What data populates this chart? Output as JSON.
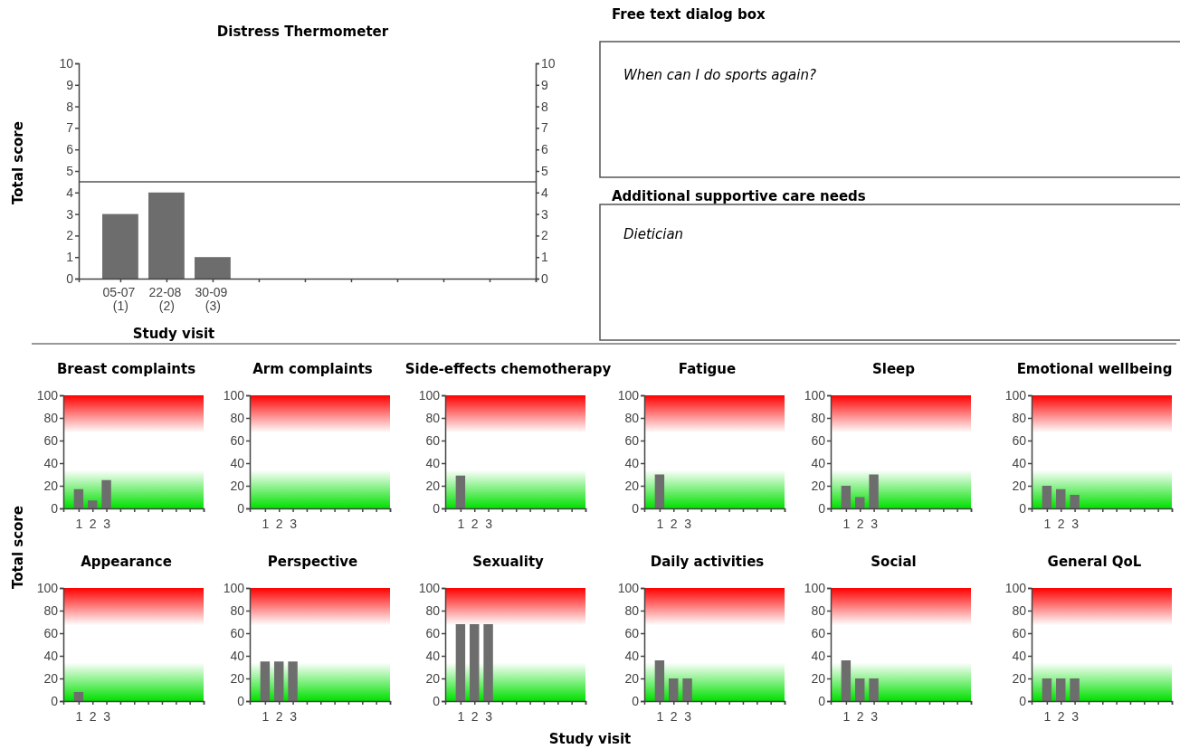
{
  "chart_data": [
    {
      "type": "bar",
      "title": "Distress Thermometer",
      "xlabel": "Study visit",
      "ylabel": "Total score",
      "categories": [
        "05-07 (1)",
        "22-08 (2)",
        "30-09 (3)",
        null,
        null,
        null,
        null,
        null,
        null,
        null
      ],
      "values": [
        3,
        4,
        1,
        null,
        null,
        null,
        null,
        null,
        null,
        null
      ],
      "color": "#6d6d6d",
      "ylim": [
        0,
        10
      ],
      "yticks": [
        0,
        1,
        2,
        3,
        4,
        5,
        6,
        7,
        8,
        9,
        10
      ],
      "y2lim": [
        0,
        10
      ],
      "y2ticks": [
        0,
        1,
        2,
        3,
        4,
        5,
        6,
        7,
        8,
        9,
        10
      ],
      "ref_lines": [
        {
          "axis": "y",
          "value": 4.5,
          "color": "#555555"
        }
      ]
    },
    {
      "type": "other",
      "title": "Free text dialog box",
      "annotations": [
        "When can I do sports again?",
        "Additional supportive care needs",
        "Dietician"
      ]
    },
    {
      "type": "bar",
      "title": "Breast complaints",
      "ylabel": "Total score",
      "categories": [
        "1",
        "2",
        "3",
        null,
        null,
        null,
        null,
        null,
        null,
        null
      ],
      "values": [
        17,
        7,
        25,
        null,
        null,
        null,
        null,
        null,
        null,
        null
      ],
      "color": "#6d6d6d",
      "ylim": [
        0,
        100
      ],
      "yticks": [
        0,
        20,
        40,
        60,
        80,
        100
      ],
      "bands": [
        {
          "axis": "y",
          "from": 67,
          "to": 100,
          "color": "#ff0000"
        },
        {
          "axis": "y",
          "from": 0,
          "to": 34,
          "color": "#00e000"
        }
      ]
    },
    {
      "type": "bar",
      "title": "Arm complaints",
      "categories": [
        "1",
        "2",
        "3",
        null,
        null,
        null,
        null,
        null,
        null,
        null
      ],
      "values": [
        null,
        null,
        null,
        null,
        null,
        null,
        null,
        null,
        null,
        null
      ],
      "ylim": [
        0,
        100
      ],
      "yticks": [
        0,
        20,
        40,
        60,
        80,
        100
      ],
      "bands": [
        {
          "axis": "y",
          "from": 67,
          "to": 100,
          "color": "#ff0000"
        },
        {
          "axis": "y",
          "from": 0,
          "to": 34,
          "color": "#00e000"
        }
      ]
    },
    {
      "type": "bar",
      "title": "Side-effects chemotherapy",
      "categories": [
        "1",
        "2",
        "3",
        null,
        null,
        null,
        null,
        null,
        null,
        null
      ],
      "values": [
        29,
        null,
        null,
        null,
        null,
        null,
        null,
        null,
        null,
        null
      ],
      "color": "#6d6d6d",
      "ylim": [
        0,
        100
      ],
      "yticks": [
        0,
        20,
        40,
        60,
        80,
        100
      ],
      "bands": [
        {
          "axis": "y",
          "from": 67,
          "to": 100,
          "color": "#ff0000"
        },
        {
          "axis": "y",
          "from": 0,
          "to": 34,
          "color": "#00e000"
        }
      ]
    },
    {
      "type": "bar",
      "title": "Fatigue",
      "categories": [
        "1",
        "2",
        "3",
        null,
        null,
        null,
        null,
        null,
        null,
        null
      ],
      "values": [
        30,
        null,
        null,
        null,
        null,
        null,
        null,
        null,
        null,
        null
      ],
      "color": "#6d6d6d",
      "ylim": [
        0,
        100
      ],
      "yticks": [
        0,
        20,
        40,
        60,
        80,
        100
      ],
      "bands": [
        {
          "axis": "y",
          "from": 67,
          "to": 100,
          "color": "#ff0000"
        },
        {
          "axis": "y",
          "from": 0,
          "to": 34,
          "color": "#00e000"
        }
      ]
    },
    {
      "type": "bar",
      "title": "Sleep",
      "categories": [
        "1",
        "2",
        "3",
        null,
        null,
        null,
        null,
        null,
        null,
        null
      ],
      "values": [
        20,
        10,
        30,
        null,
        null,
        null,
        null,
        null,
        null,
        null
      ],
      "color": "#6d6d6d",
      "ylim": [
        0,
        100
      ],
      "yticks": [
        0,
        20,
        40,
        60,
        80,
        100
      ],
      "bands": [
        {
          "axis": "y",
          "from": 67,
          "to": 100,
          "color": "#ff0000"
        },
        {
          "axis": "y",
          "from": 0,
          "to": 34,
          "color": "#00e000"
        }
      ]
    },
    {
      "type": "bar",
      "title": "Emotional wellbeing",
      "categories": [
        "1",
        "2",
        "3",
        null,
        null,
        null,
        null,
        null,
        null,
        null
      ],
      "values": [
        20,
        17,
        12,
        null,
        null,
        null,
        null,
        null,
        null,
        null
      ],
      "color": "#6d6d6d",
      "ylim": [
        0,
        100
      ],
      "yticks": [
        0,
        20,
        40,
        60,
        80,
        100
      ],
      "bands": [
        {
          "axis": "y",
          "from": 67,
          "to": 100,
          "color": "#ff0000"
        },
        {
          "axis": "y",
          "from": 0,
          "to": 34,
          "color": "#00e000"
        }
      ]
    },
    {
      "type": "bar",
      "title": "Appearance",
      "categories": [
        "1",
        "2",
        "3",
        null,
        null,
        null,
        null,
        null,
        null,
        null
      ],
      "values": [
        8,
        null,
        null,
        null,
        null,
        null,
        null,
        null,
        null,
        null
      ],
      "color": "#6d6d6d",
      "ylim": [
        0,
        100
      ],
      "yticks": [
        0,
        20,
        40,
        60,
        80,
        100
      ],
      "bands": [
        {
          "axis": "y",
          "from": 67,
          "to": 100,
          "color": "#ff0000"
        },
        {
          "axis": "y",
          "from": 0,
          "to": 34,
          "color": "#00e000"
        }
      ]
    },
    {
      "type": "bar",
      "title": "Perspective",
      "categories": [
        "1",
        "2",
        "3",
        null,
        null,
        null,
        null,
        null,
        null,
        null
      ],
      "values": [
        35,
        35,
        35,
        null,
        null,
        null,
        null,
        null,
        null,
        null
      ],
      "color": "#6d6d6d",
      "ylim": [
        0,
        100
      ],
      "yticks": [
        0,
        20,
        40,
        60,
        80,
        100
      ],
      "bands": [
        {
          "axis": "y",
          "from": 67,
          "to": 100,
          "color": "#ff0000"
        },
        {
          "axis": "y",
          "from": 0,
          "to": 34,
          "color": "#00e000"
        }
      ]
    },
    {
      "type": "bar",
      "title": "Sexuality",
      "xlabel": "Study visit",
      "categories": [
        "1",
        "2",
        "3",
        null,
        null,
        null,
        null,
        null,
        null,
        null
      ],
      "values": [
        68,
        68,
        68,
        null,
        null,
        null,
        null,
        null,
        null,
        null
      ],
      "color": "#6d6d6d",
      "ylim": [
        0,
        100
      ],
      "yticks": [
        0,
        20,
        40,
        60,
        80,
        100
      ],
      "bands": [
        {
          "axis": "y",
          "from": 67,
          "to": 100,
          "color": "#ff0000"
        },
        {
          "axis": "y",
          "from": 0,
          "to": 34,
          "color": "#00e000"
        }
      ]
    },
    {
      "type": "bar",
      "title": "Daily activities",
      "categories": [
        "1",
        "2",
        "3",
        null,
        null,
        null,
        null,
        null,
        null,
        null
      ],
      "values": [
        36,
        20,
        20,
        null,
        null,
        null,
        null,
        null,
        null,
        null
      ],
      "color": "#6d6d6d",
      "ylim": [
        0,
        100
      ],
      "yticks": [
        0,
        20,
        40,
        60,
        80,
        100
      ],
      "bands": [
        {
          "axis": "y",
          "from": 67,
          "to": 100,
          "color": "#ff0000"
        },
        {
          "axis": "y",
          "from": 0,
          "to": 34,
          "color": "#00e000"
        }
      ]
    },
    {
      "type": "bar",
      "title": "Social",
      "categories": [
        "1",
        "2",
        "3",
        null,
        null,
        null,
        null,
        null,
        null,
        null
      ],
      "values": [
        36,
        20,
        20,
        null,
        null,
        null,
        null,
        null,
        null,
        null
      ],
      "color": "#6d6d6d",
      "ylim": [
        0,
        100
      ],
      "yticks": [
        0,
        20,
        40,
        60,
        80,
        100
      ],
      "bands": [
        {
          "axis": "y",
          "from": 67,
          "to": 100,
          "color": "#ff0000"
        },
        {
          "axis": "y",
          "from": 0,
          "to": 34,
          "color": "#00e000"
        }
      ]
    },
    {
      "type": "bar",
      "title": "General QoL",
      "categories": [
        "1",
        "2",
        "3",
        null,
        null,
        null,
        null,
        null,
        null,
        null
      ],
      "values": [
        20,
        20,
        20,
        null,
        null,
        null,
        null,
        null,
        null,
        null
      ],
      "color": "#6d6d6d",
      "ylim": [
        0,
        100
      ],
      "yticks": [
        0,
        20,
        40,
        60,
        80,
        100
      ],
      "bands": [
        {
          "axis": "y",
          "from": 67,
          "to": 100,
          "color": "#ff0000"
        },
        {
          "axis": "y",
          "from": 0,
          "to": 34,
          "color": "#00e000"
        }
      ]
    }
  ]
}
